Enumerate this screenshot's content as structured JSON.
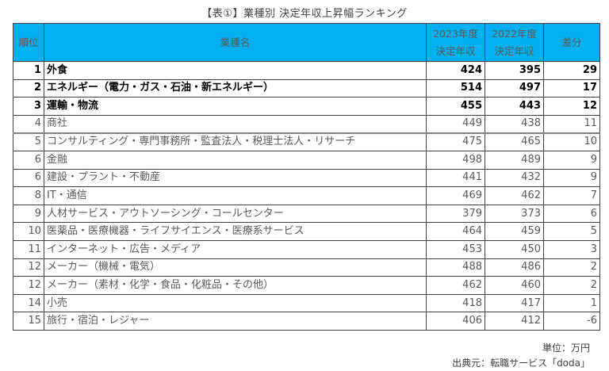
{
  "title": "【表①】業種別 決定年収上昇幅ランキング",
  "table": {
    "headers": {
      "rank": "順位",
      "industry": "業種名",
      "y2023_line1": "2023年度",
      "y2023_line2": "決定年収",
      "y2022_line1": "2022年度",
      "y2022_line2": "決定年収",
      "diff": "差分"
    },
    "rows": [
      {
        "rank": "1",
        "industry": "外食",
        "y2023": "424",
        "y2022": "395",
        "diff": "29"
      },
      {
        "rank": "2",
        "industry": "エネルギー（電力・ガス・石油・新エネルギー）",
        "y2023": "514",
        "y2022": "497",
        "diff": "17"
      },
      {
        "rank": "3",
        "industry": "運輸・物流",
        "y2023": "455",
        "y2022": "443",
        "diff": "12"
      },
      {
        "rank": "4",
        "industry": "商社",
        "y2023": "449",
        "y2022": "438",
        "diff": "11"
      },
      {
        "rank": "5",
        "industry": "コンサルティング・専門事務所・監査法人・税理士法人・リサーチ",
        "y2023": "475",
        "y2022": "465",
        "diff": "10"
      },
      {
        "rank": "6",
        "industry": "金融",
        "y2023": "498",
        "y2022": "489",
        "diff": "9"
      },
      {
        "rank": "6",
        "industry": "建設・プラント・不動産",
        "y2023": "441",
        "y2022": "432",
        "diff": "9"
      },
      {
        "rank": "8",
        "industry": "IT・通信",
        "y2023": "469",
        "y2022": "462",
        "diff": "7"
      },
      {
        "rank": "9",
        "industry": "人材サービス・アウトソーシング・コールセンター",
        "y2023": "379",
        "y2022": "373",
        "diff": "6"
      },
      {
        "rank": "10",
        "industry": "医薬品・医療機器・ライフサイエンス・医療系サービス",
        "y2023": "464",
        "y2022": "459",
        "diff": "5"
      },
      {
        "rank": "11",
        "industry": "インターネット・広告・メディア",
        "y2023": "453",
        "y2022": "450",
        "diff": "3"
      },
      {
        "rank": "12",
        "industry": "メーカー（機械・電気）",
        "y2023": "488",
        "y2022": "486",
        "diff": "2"
      },
      {
        "rank": "12",
        "industry": "メーカー（素材・化学・食品・化粧品・その他）",
        "y2023": "462",
        "y2022": "460",
        "diff": "2"
      },
      {
        "rank": "14",
        "industry": "小売",
        "y2023": "418",
        "y2022": "417",
        "diff": "1"
      },
      {
        "rank": "15",
        "industry": "旅行・宿泊・レジャー",
        "y2023": "406",
        "y2022": "412",
        "diff": "-6"
      }
    ]
  },
  "unit_note": "単位：万円",
  "source_note": "出典元：転職サービス「doda」",
  "colors": {
    "header_bg": "#00b0f0",
    "top3_text": "#000000",
    "normal_text": "#595959"
  }
}
